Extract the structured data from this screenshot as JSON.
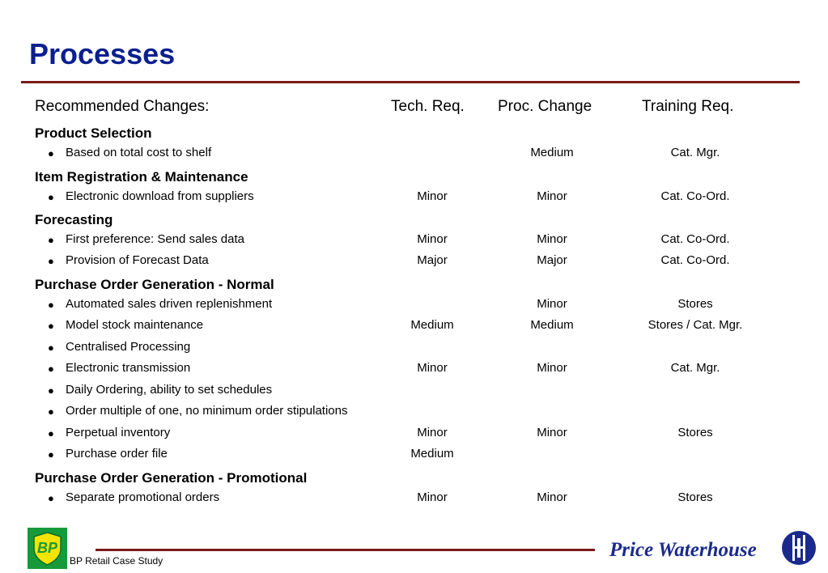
{
  "title": "Processes",
  "headers": {
    "changes": "Recommended Changes:",
    "tech": "Tech. Req.",
    "proc": "Proc. Change",
    "training": "Training Req."
  },
  "sections": [
    {
      "name": "Product Selection",
      "items": [
        {
          "text": "Based on total cost to shelf",
          "tech": "",
          "proc": "Medium",
          "training": "Cat. Mgr."
        }
      ]
    },
    {
      "name": "Item Registration & Maintenance",
      "items": [
        {
          "text": "Electronic download from suppliers",
          "tech": "Minor",
          "proc": "Minor",
          "training": "Cat. Co-Ord."
        }
      ]
    },
    {
      "name": "Forecasting",
      "items": [
        {
          "text": "First preference:  Send sales data",
          "tech": "Minor",
          "proc": "Minor",
          "training": "Cat. Co-Ord."
        },
        {
          "text": "Provision of Forecast Data",
          "tech": "Major",
          "proc": "Major",
          "training": "Cat. Co-Ord."
        }
      ]
    },
    {
      "name": "Purchase Order Generation - Normal",
      "items": [
        {
          "text": "Automated sales driven replenishment",
          "tech": "",
          "proc": "Minor",
          "training": "Stores"
        },
        {
          "text": "Model stock maintenance",
          "tech": "Medium",
          "proc": "Medium",
          "training": "Stores / Cat. Mgr."
        },
        {
          "text": "Centralised Processing",
          "tech": "",
          "proc": "",
          "training": ""
        },
        {
          "text": "Electronic transmission",
          "tech": "Minor",
          "proc": "Minor",
          "training": "Cat. Mgr."
        },
        {
          "text": "Daily Ordering, ability to set schedules",
          "tech": "",
          "proc": "",
          "training": ""
        },
        {
          "text": "Order multiple of one, no minimum order stipulations",
          "tech": "",
          "proc": "",
          "training": ""
        },
        {
          "text": "Perpetual inventory",
          "tech": "Minor",
          "proc": "Minor",
          "training": "Stores"
        },
        {
          "text": "Purchase order file",
          "tech": "Medium",
          "proc": "",
          "training": ""
        }
      ]
    },
    {
      "name": "Purchase Order Generation - Promotional",
      "items": [
        {
          "text": "Separate promotional orders",
          "tech": "Minor",
          "proc": "Minor",
          "training": "Stores"
        }
      ]
    }
  ],
  "bullet_glyph": "●",
  "footer": {
    "logo_text": "BP",
    "caption": "BP Retail Case Study",
    "brand": "Price Waterhouse"
  },
  "colors": {
    "title": "#0b1f8f",
    "rule": "#7a1a1a",
    "logo_bg": "#179b3a",
    "logo_shield": "#f4e400",
    "brand": "#1a2a8c"
  }
}
